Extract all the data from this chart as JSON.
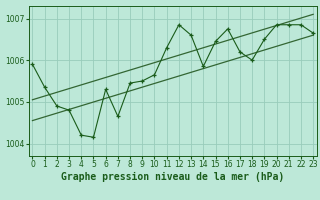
{
  "title": "Graphe pression niveau de la mer (hPa)",
  "bg_color": "#bde8d8",
  "grid_color": "#99ccbb",
  "line_color": "#1a5c1a",
  "trend_color": "#336633",
  "x_values": [
    0,
    1,
    2,
    3,
    4,
    5,
    6,
    7,
    8,
    9,
    10,
    11,
    12,
    13,
    14,
    15,
    16,
    17,
    18,
    19,
    20,
    21,
    22,
    23
  ],
  "y_values": [
    1005.9,
    1005.35,
    1004.9,
    1004.8,
    1004.2,
    1004.15,
    1005.3,
    1004.65,
    1005.45,
    1005.5,
    1005.65,
    1006.3,
    1006.85,
    1006.6,
    1005.85,
    1006.45,
    1006.75,
    1006.2,
    1006.0,
    1006.5,
    1006.85,
    1006.85,
    1006.85,
    1006.65
  ],
  "ylim": [
    1003.7,
    1007.3
  ],
  "yticks": [
    1004,
    1005,
    1006,
    1007
  ],
  "xlim": [
    -0.3,
    23.3
  ],
  "trend_lower": [
    1004.55,
    1006.6
  ],
  "trend_upper": [
    1005.05,
    1007.1
  ],
  "font_color": "#1a5c1a",
  "title_fontsize": 7.0,
  "tick_fontsize": 5.5
}
